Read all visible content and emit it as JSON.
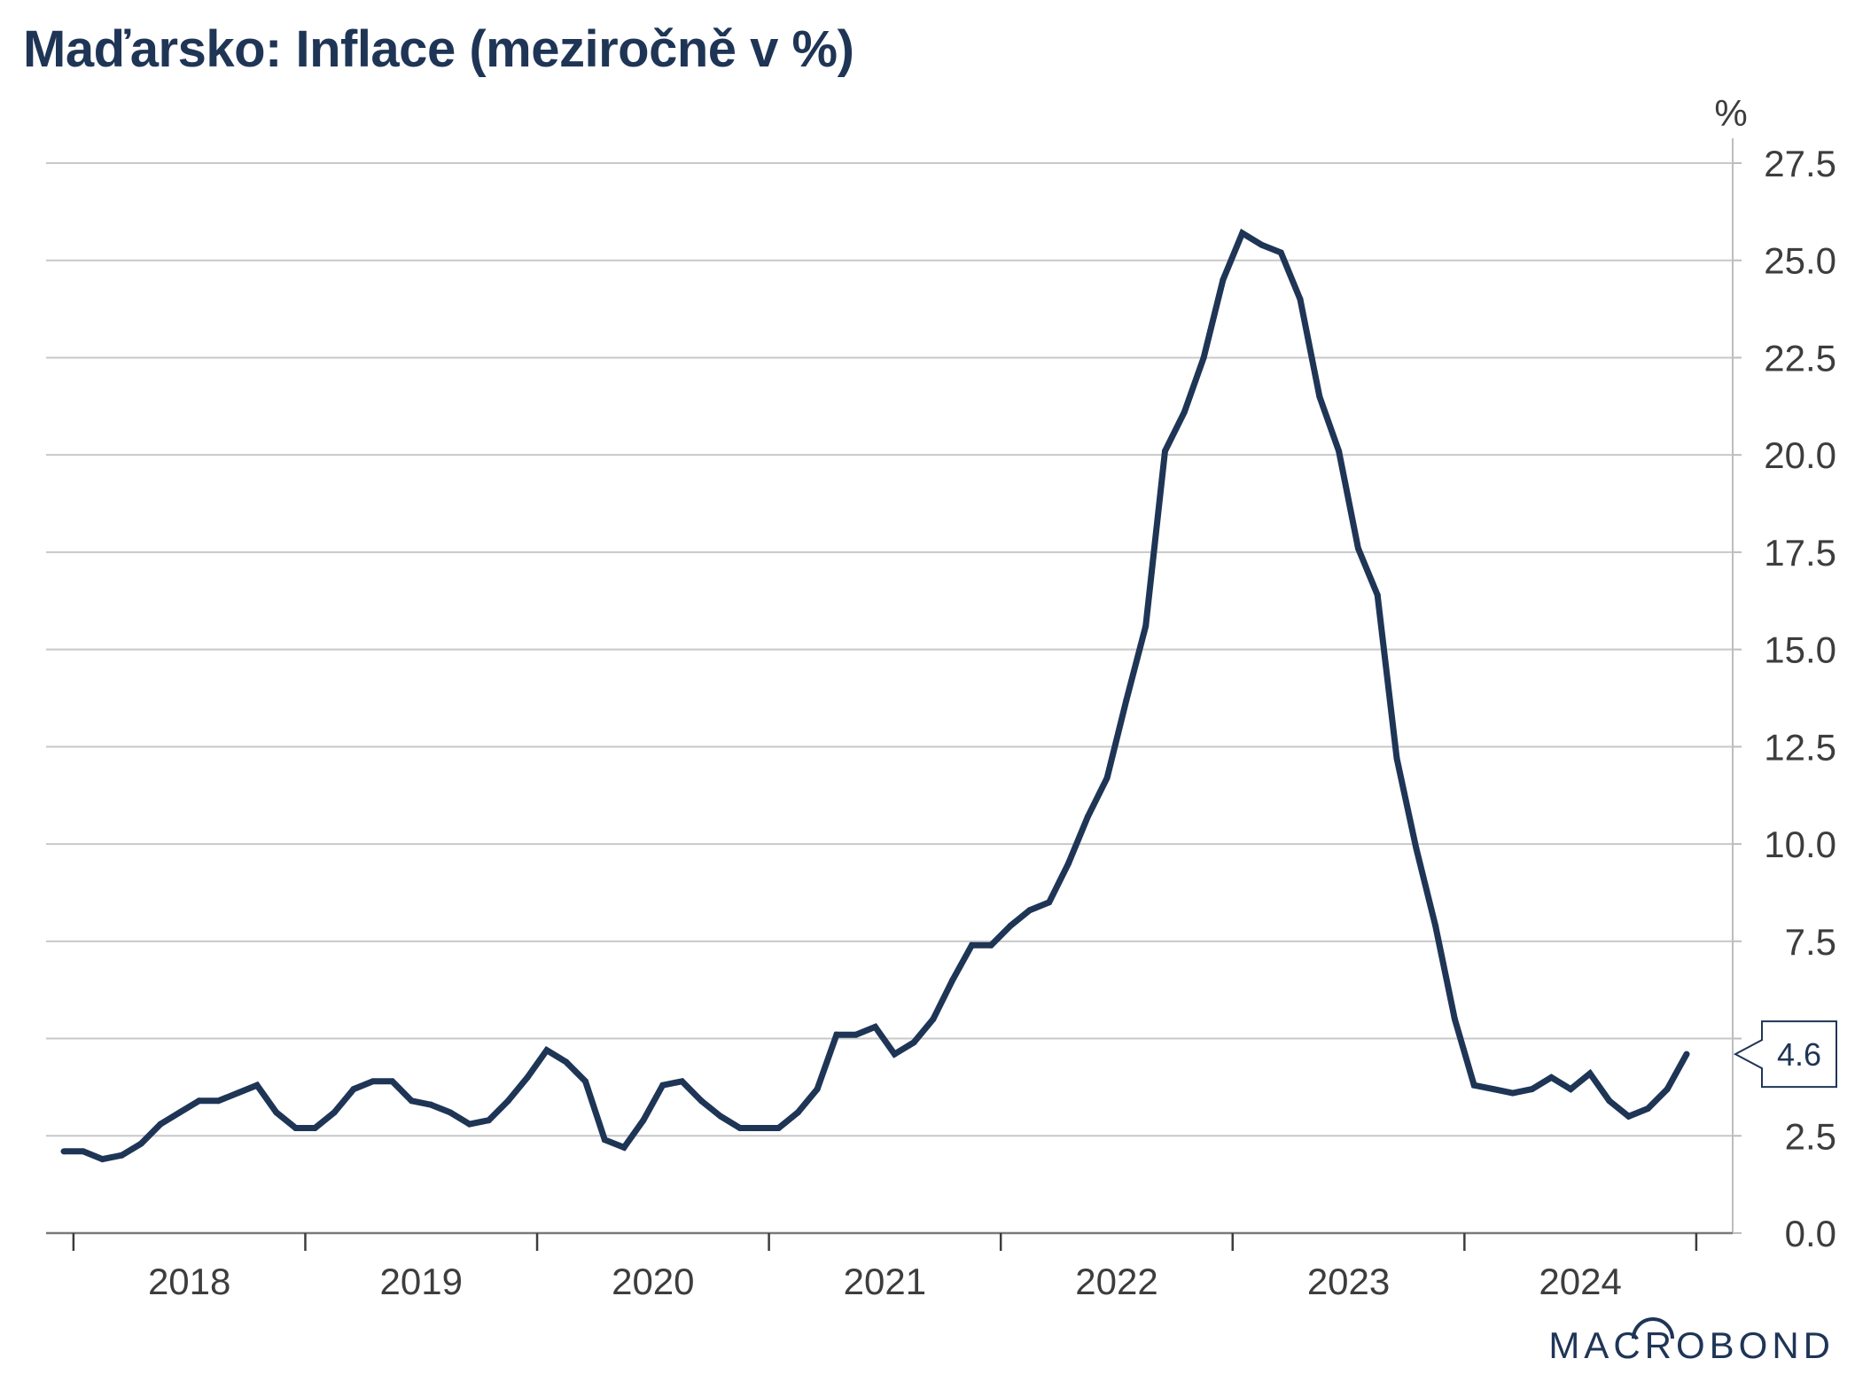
{
  "chart_data": {
    "type": "line",
    "title": "Maďarsko: Inflace (meziročně v %)",
    "unit_label": "%",
    "y_axis_side": "right",
    "ylim": [
      0,
      27.5
    ],
    "y_ticks": [
      "0.0",
      "2.5",
      "5.0",
      "7.5",
      "10.0",
      "12.5",
      "15.0",
      "17.5",
      "20.0",
      "22.5",
      "25.0",
      "27.5"
    ],
    "x_start": "2017-12",
    "x_end": "2024-12",
    "x_labels": [
      "2018",
      "2019",
      "2020",
      "2021",
      "2022",
      "2023",
      "2024"
    ],
    "grid": "horizontal",
    "line_color": "#1f3556",
    "series": [
      {
        "frequency": "monthly",
        "start": "2017-12",
        "values": [
          2.1,
          2.1,
          1.9,
          2.0,
          2.3,
          2.8,
          3.1,
          3.4,
          3.4,
          3.6,
          3.8,
          3.1,
          2.7,
          2.7,
          3.1,
          3.7,
          3.9,
          3.9,
          3.4,
          3.3,
          3.1,
          2.8,
          2.9,
          3.4,
          4.0,
          4.7,
          4.4,
          3.9,
          2.4,
          2.2,
          2.9,
          3.8,
          3.9,
          3.4,
          3.0,
          2.7,
          2.7,
          2.7,
          3.1,
          3.7,
          5.1,
          5.1,
          5.3,
          4.6,
          4.9,
          5.5,
          6.5,
          7.4,
          7.4,
          7.9,
          8.3,
          8.5,
          9.5,
          10.7,
          11.7,
          13.7,
          15.6,
          20.1,
          21.1,
          22.5,
          24.5,
          25.7,
          25.4,
          25.2,
          24.0,
          21.5,
          20.1,
          17.6,
          16.4,
          12.2,
          9.9,
          7.9,
          5.5,
          3.8,
          3.7,
          3.6,
          3.7,
          4.0,
          3.7,
          4.1,
          3.4,
          3.0,
          3.2,
          3.7,
          4.6
        ]
      }
    ],
    "last_value_label": "4.6",
    "source_logo": "MACROBOND"
  }
}
